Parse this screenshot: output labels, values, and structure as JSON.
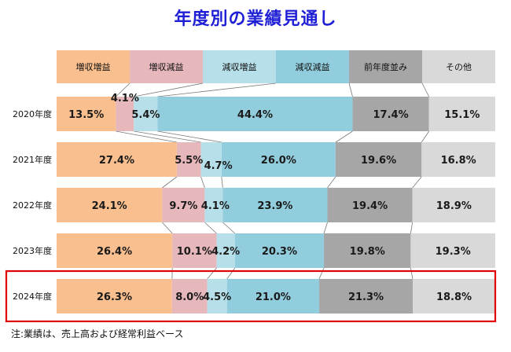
{
  "chart_data": {
    "type": "bar",
    "stacked": true,
    "orientation": "horizontal",
    "percent_stacked": true,
    "title": "年度別の業績見通し",
    "note": "注:業績は、売上高および経常利益ベース",
    "categories": [
      "2020年度",
      "2021年度",
      "2022年度",
      "2023年度",
      "2024年度"
    ],
    "series": [
      {
        "name": "増収増益",
        "color": "#f9bf8f",
        "values": [
          13.5,
          27.4,
          24.1,
          26.4,
          26.3
        ],
        "labels": [
          "13.5%",
          "27.4%",
          "24.1%",
          "26.4%",
          "26.3%"
        ]
      },
      {
        "name": "増収減益",
        "color": "#e6b7bb",
        "values": [
          4.1,
          5.5,
          9.7,
          10.1,
          8.0
        ],
        "labels": [
          "4.1%",
          "5.5%",
          "9.7%",
          "10.1%",
          "8.0%"
        ]
      },
      {
        "name": "減収増益",
        "color": "#b7dfe9",
        "values": [
          5.4,
          4.7,
          4.1,
          4.2,
          4.5
        ],
        "labels": [
          "5.4%",
          "4.7%",
          "4.1%",
          "4.2%",
          "4.5%"
        ]
      },
      {
        "name": "減収減益",
        "color": "#92cddd",
        "values": [
          44.4,
          26.0,
          23.9,
          20.3,
          21.0
        ],
        "labels": [
          "44.4%",
          "26.0%",
          "23.9%",
          "20.3%",
          "21.0%"
        ]
      },
      {
        "name": "前年度並み",
        "color": "#a6a6a6",
        "values": [
          17.4,
          19.6,
          19.4,
          19.8,
          21.3
        ],
        "labels": [
          "17.4%",
          "19.6%",
          "19.4%",
          "19.8%",
          "21.3%"
        ]
      },
      {
        "name": "その他",
        "color": "#d9d9d9",
        "values": [
          15.1,
          16.8,
          18.9,
          19.3,
          18.8
        ],
        "labels": [
          "15.1%",
          "16.8%",
          "18.9%",
          "19.3%",
          "18.8%"
        ]
      }
    ],
    "xlim": [
      0,
      100
    ],
    "highlight_category": "2024年度",
    "highlight_color": "#e00000",
    "connector_lines": true,
    "legend_position": "top"
  }
}
